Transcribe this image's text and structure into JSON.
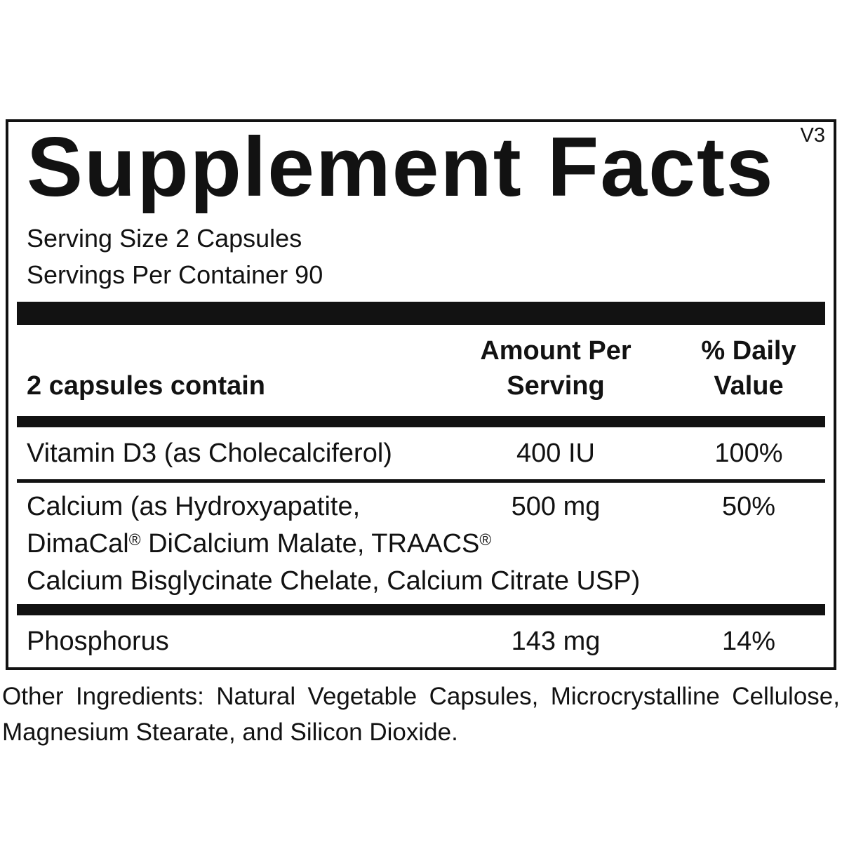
{
  "label": {
    "version": "V3",
    "title": "Supplement Facts",
    "serving_size": "Serving Size 2 Capsules",
    "servings_per_container": "Servings Per Container 90",
    "columns": {
      "contains": "2 capsules contain",
      "amount_line1": "Amount Per",
      "amount_line2": "Serving",
      "dv_line1": "% Daily",
      "dv_line2": "Value"
    },
    "rows": [
      {
        "name": "Vitamin D3 (as Cholecalciferol)",
        "amount": "400 IU",
        "dv": "100%"
      },
      {
        "lines": [
          "Calcium (as Hydroxyapatite,",
          "DimaCal® DiCalcium Malate, TRAACS®",
          "Calcium Bisglycinate Chelate, Calcium Citrate USP)"
        ],
        "amount": "500 mg",
        "dv": "50%"
      },
      {
        "name": "Phosphorus",
        "amount": "143 mg",
        "dv": "14%"
      }
    ],
    "other_ingredients": "Other Ingredients: Natural Vegetable Capsules, Microcrystalline Cellulose, Magnesium Stearate, and Silicon Dioxide."
  },
  "colors": {
    "ink": "#121212",
    "background": "#ffffff"
  }
}
